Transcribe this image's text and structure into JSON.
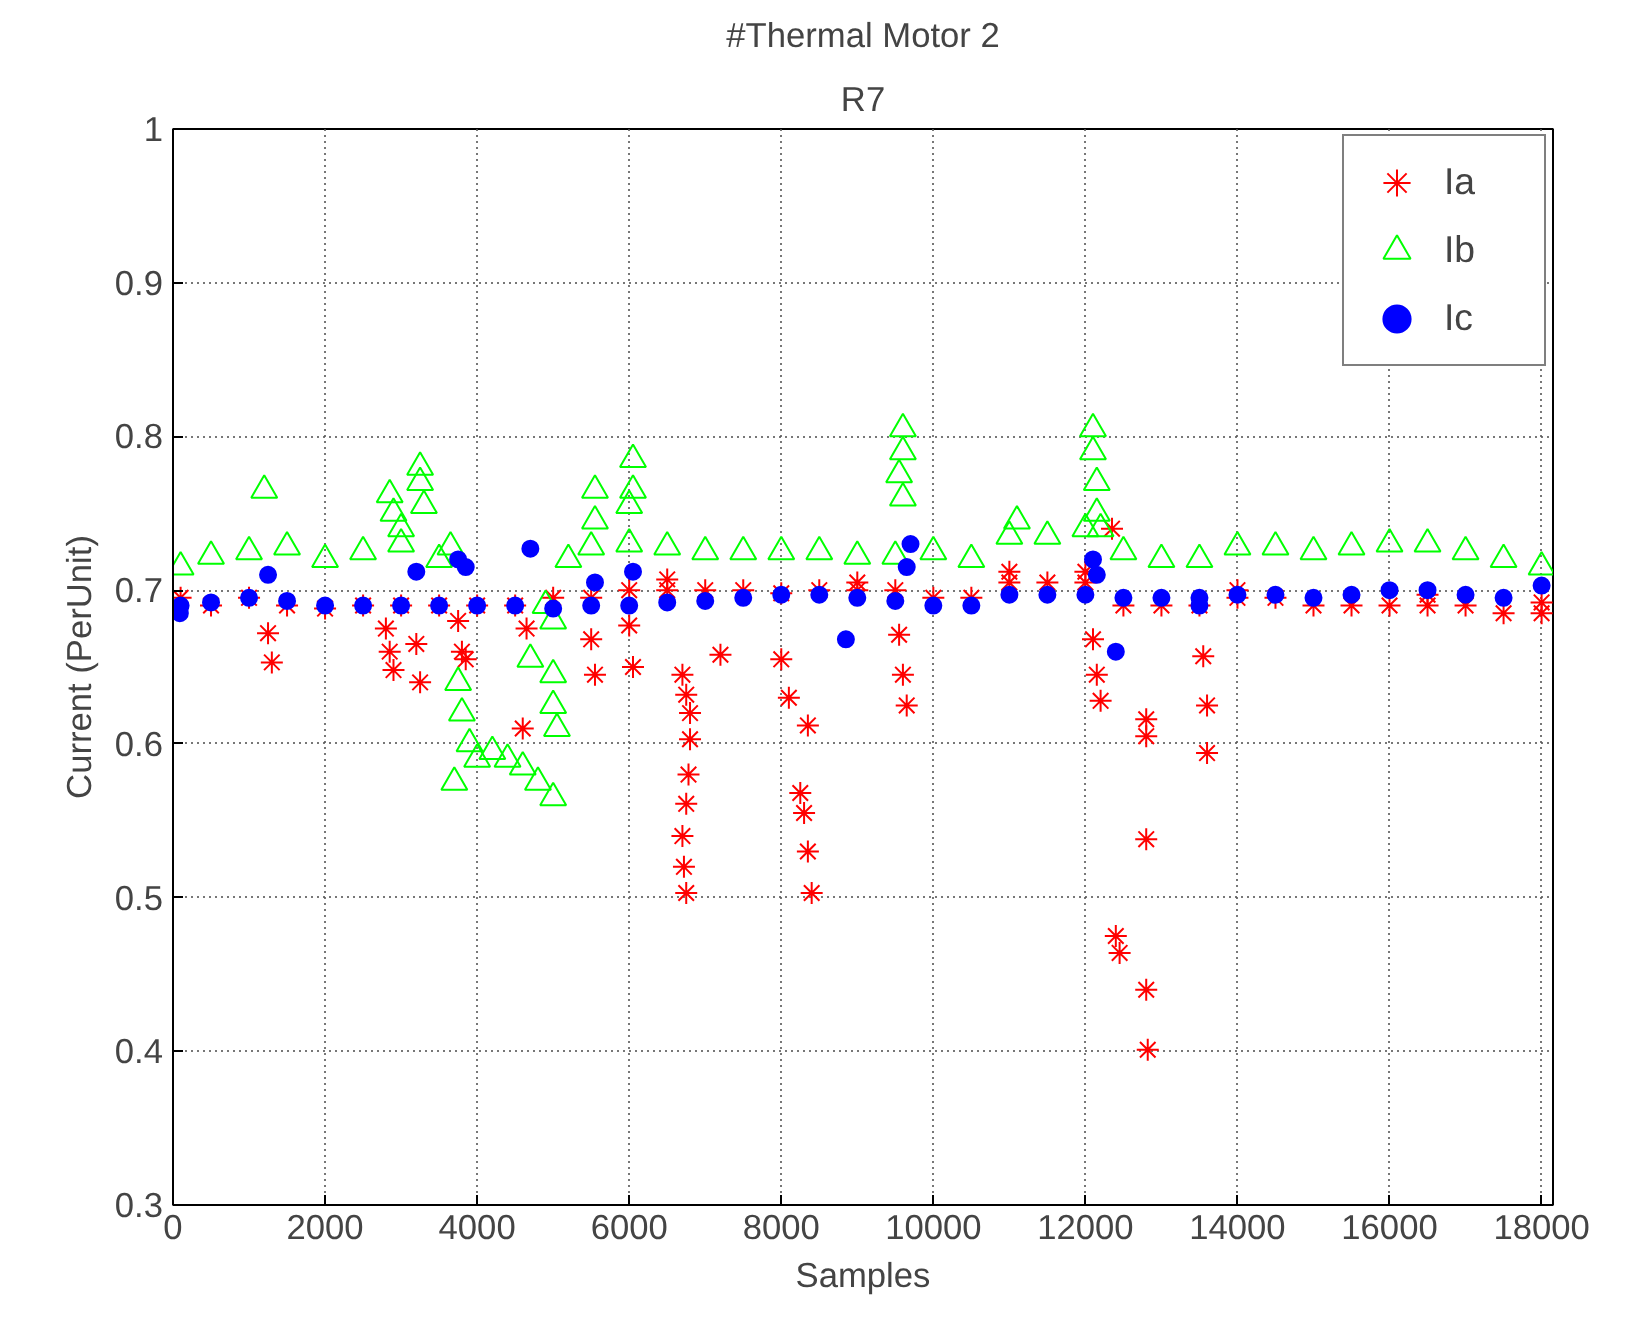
{
  "chart_data": {
    "type": "scatter",
    "title": "#Thermal Motor 2",
    "subtitle": "R7",
    "xlabel": "Samples",
    "ylabel": "Current (PerUnit)",
    "xlim": [
      0,
      18150
    ],
    "ylim": [
      0.3,
      1
    ],
    "xticks": [
      0,
      2000,
      4000,
      6000,
      8000,
      10000,
      12000,
      14000,
      16000,
      18000
    ],
    "yticks": [
      0.3,
      0.4,
      0.5,
      0.6,
      0.7,
      0.8,
      0.9,
      1
    ],
    "grid": true,
    "legend": "top right",
    "series": [
      {
        "name": "Ia",
        "color": "#ff0000",
        "marker": "cross",
        "x": [
          100,
          500,
          1000,
          1500,
          2000,
          2500,
          3000,
          3500,
          4000,
          4500,
          5000,
          5500,
          6000,
          6500,
          7000,
          7500,
          8000,
          8500,
          9000,
          9500,
          10000,
          10500,
          11000,
          11500,
          12000,
          12500,
          13000,
          13500,
          14000,
          14500,
          15000,
          15500,
          16000,
          16500,
          17000,
          17500,
          18000,
          6500,
          9000,
          11000,
          12000,
          14000,
          16500,
          18000,
          1250,
          1300,
          2800,
          2850,
          2900,
          3200,
          3250,
          3750,
          3800,
          3850,
          4600,
          4650,
          5500,
          5550,
          6000,
          6050,
          6700,
          6800,
          6750,
          6800,
          6780,
          6750,
          6700,
          6720,
          6750,
          7200,
          8000,
          8100,
          8350,
          8250,
          8300,
          8350,
          8400,
          9550,
          9600,
          9650,
          12100,
          12150,
          12200,
          12350,
          12400,
          12450,
          12800,
          12800,
          12800,
          12800,
          12820,
          13550,
          13600,
          13600
        ],
        "values": [
          0.695,
          0.69,
          0.695,
          0.69,
          0.688,
          0.69,
          0.69,
          0.69,
          0.69,
          0.69,
          0.695,
          0.695,
          0.7,
          0.7,
          0.7,
          0.7,
          0.698,
          0.7,
          0.7,
          0.7,
          0.695,
          0.695,
          0.705,
          0.705,
          0.705,
          0.69,
          0.69,
          0.69,
          0.695,
          0.695,
          0.69,
          0.69,
          0.69,
          0.69,
          0.69,
          0.685,
          0.685,
          0.707,
          0.705,
          0.712,
          0.712,
          0.7,
          0.697,
          0.692,
          0.672,
          0.653,
          0.675,
          0.66,
          0.648,
          0.665,
          0.64,
          0.68,
          0.66,
          0.655,
          0.61,
          0.675,
          0.668,
          0.645,
          0.677,
          0.65,
          0.645,
          0.62,
          0.632,
          0.603,
          0.58,
          0.561,
          0.54,
          0.52,
          0.503,
          0.658,
          0.655,
          0.63,
          0.612,
          0.568,
          0.555,
          0.53,
          0.503,
          0.671,
          0.645,
          0.625,
          0.668,
          0.645,
          0.628,
          0.74,
          0.475,
          0.464,
          0.616,
          0.605,
          0.538,
          0.44,
          0.401,
          0.657,
          0.625,
          0.594
        ]
      },
      {
        "name": "Ib",
        "color": "#00ff00",
        "marker": "triangle",
        "x": [
          100,
          500,
          1000,
          1500,
          2000,
          2500,
          3000,
          3500,
          3650,
          5200,
          5500,
          6000,
          6500,
          7000,
          7500,
          8000,
          8500,
          9000,
          9500,
          10000,
          10500,
          11000,
          11500,
          12000,
          12500,
          13000,
          13500,
          14000,
          14500,
          15000,
          15500,
          16000,
          16500,
          17000,
          17500,
          18000,
          3750,
          3800,
          3700,
          3900,
          4000,
          4200,
          4400,
          4600,
          4800,
          5000,
          4700,
          5000,
          5000,
          5050,
          5000,
          4900,
          1200,
          2850,
          2900,
          3000,
          3250,
          3250,
          3300,
          5550,
          5550,
          6050,
          6050,
          6000,
          9600,
          9600,
          9550,
          9600,
          11100,
          12100,
          12100,
          12150,
          12150,
          12200
        ],
        "values": [
          0.715,
          0.722,
          0.725,
          0.728,
          0.72,
          0.725,
          0.73,
          0.72,
          0.728,
          0.72,
          0.728,
          0.73,
          0.728,
          0.725,
          0.725,
          0.725,
          0.725,
          0.722,
          0.722,
          0.725,
          0.72,
          0.735,
          0.735,
          0.74,
          0.725,
          0.72,
          0.72,
          0.728,
          0.728,
          0.725,
          0.728,
          0.73,
          0.73,
          0.725,
          0.72,
          0.715,
          0.64,
          0.62,
          0.575,
          0.6,
          0.59,
          0.595,
          0.59,
          0.585,
          0.575,
          0.565,
          0.655,
          0.645,
          0.625,
          0.61,
          0.68,
          0.69,
          0.765,
          0.762,
          0.75,
          0.74,
          0.78,
          0.77,
          0.755,
          0.765,
          0.745,
          0.785,
          0.765,
          0.755,
          0.805,
          0.79,
          0.775,
          0.76,
          0.745,
          0.805,
          0.79,
          0.77,
          0.75,
          0.74
        ]
      },
      {
        "name": "Ic",
        "color": "#0000ff",
        "marker": "circle",
        "x": [
          100,
          500,
          1000,
          1500,
          2000,
          2500,
          3000,
          3500,
          4000,
          4500,
          5000,
          5500,
          6000,
          6500,
          7000,
          7500,
          8000,
          8500,
          9000,
          9500,
          10000,
          10500,
          11000,
          11500,
          12000,
          12500,
          13000,
          13500,
          14000,
          14500,
          15000,
          15500,
          16000,
          16500,
          17000,
          17500,
          18000,
          1250,
          3200,
          3750,
          3850,
          4700,
          5550,
          6050,
          8850,
          9700,
          9650,
          12100,
          12150,
          12400,
          13500,
          90
        ],
        "values": [
          0.69,
          0.692,
          0.695,
          0.693,
          0.69,
          0.69,
          0.69,
          0.69,
          0.69,
          0.69,
          0.688,
          0.69,
          0.69,
          0.692,
          0.693,
          0.695,
          0.697,
          0.697,
          0.695,
          0.693,
          0.69,
          0.69,
          0.697,
          0.697,
          0.697,
          0.695,
          0.695,
          0.695,
          0.697,
          0.697,
          0.695,
          0.697,
          0.7,
          0.7,
          0.697,
          0.695,
          0.703,
          0.71,
          0.712,
          0.72,
          0.715,
          0.727,
          0.705,
          0.712,
          0.668,
          0.73,
          0.715,
          0.72,
          0.71,
          0.66,
          0.69,
          0.685
        ]
      }
    ]
  }
}
